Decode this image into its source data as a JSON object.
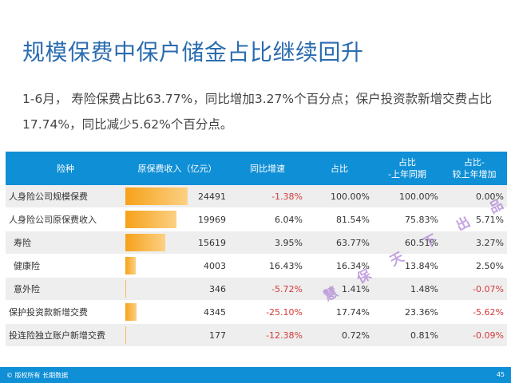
{
  "title": "规模保费中保户储金占比继续回升",
  "subtitle": "1-6月， 寿险保费占比63.77%，同比增加3.27%个百分点；保户投资款新增交费占比17.74%，同比减少5.62%个百分点。",
  "table": {
    "headers": {
      "kind": "险种",
      "premium": "原保费收入（亿元）",
      "growth": "同比增速",
      "share": "占比",
      "share_last_year": "占比\n-上年同期",
      "share_change": "占比-\n较上年增加"
    },
    "rows": [
      {
        "name": "人身险公司规模保费",
        "premium": "24491",
        "bar": 1.0,
        "growth": "-1.38%",
        "share": "100.00%",
        "share_last": "100.00%",
        "change": "0.00%",
        "growth_neg": true,
        "change_neg": false,
        "indent": false
      },
      {
        "name": "人身险公司原保费收入",
        "premium": "19969",
        "bar": 0.815,
        "growth": "6.04%",
        "share": "81.54%",
        "share_last": "75.83%",
        "change": "5.71%",
        "growth_neg": false,
        "change_neg": false,
        "indent": false
      },
      {
        "name": "寿险",
        "premium": "15619",
        "bar": 0.638,
        "growth": "3.95%",
        "share": "63.77%",
        "share_last": "60.51%",
        "change": "3.27%",
        "growth_neg": false,
        "change_neg": false,
        "indent": true
      },
      {
        "name": "健康险",
        "premium": "4003",
        "bar": 0.163,
        "growth": "16.43%",
        "share": "16.34%",
        "share_last": "13.84%",
        "change": "2.50%",
        "growth_neg": false,
        "change_neg": false,
        "indent": true
      },
      {
        "name": "意外险",
        "premium": "346",
        "bar": 0.014,
        "growth": "-5.72%",
        "share": "1.41%",
        "share_last": "1.48%",
        "change": "-0.07%",
        "growth_neg": true,
        "change_neg": true,
        "indent": true
      },
      {
        "name": "保护投资款新增交费",
        "premium": "4345",
        "bar": 0.177,
        "growth": "-25.10%",
        "share": "17.74%",
        "share_last": "23.36%",
        "change": "-5.62%",
        "growth_neg": true,
        "change_neg": true,
        "indent": false
      },
      {
        "name": "投连险独立账户新增交费",
        "premium": "177",
        "bar": 0.007,
        "growth": "-12.38%",
        "share": "0.72%",
        "share_last": "0.81%",
        "change": "-0.09%",
        "growth_neg": true,
        "change_neg": true,
        "indent": false
      }
    ]
  },
  "watermark": "慧 保 天 下 出 品",
  "footer": {
    "copyright": "© 版权所有 长期数据",
    "page_number": "45"
  },
  "colors": {
    "title": "#2b6cb0",
    "header_bg": "#0f8fd6",
    "bar": "#f6a21a",
    "negative": "#d43a3a"
  }
}
